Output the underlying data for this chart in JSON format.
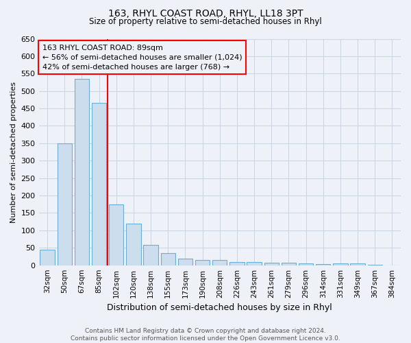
{
  "title1": "163, RHYL COAST ROAD, RHYL, LL18 3PT",
  "title2": "Size of property relative to semi-detached houses in Rhyl",
  "xlabel": "Distribution of semi-detached houses by size in Rhyl",
  "ylabel": "Number of semi-detached properties",
  "footnote": "Contains HM Land Registry data © Crown copyright and database right 2024.\nContains public sector information licensed under the Open Government Licence v3.0.",
  "bins": [
    "32sqm",
    "50sqm",
    "67sqm",
    "85sqm",
    "102sqm",
    "120sqm",
    "138sqm",
    "155sqm",
    "173sqm",
    "190sqm",
    "208sqm",
    "226sqm",
    "243sqm",
    "261sqm",
    "279sqm",
    "296sqm",
    "314sqm",
    "331sqm",
    "349sqm",
    "367sqm",
    "384sqm"
  ],
  "values": [
    45,
    350,
    535,
    465,
    175,
    120,
    58,
    35,
    20,
    15,
    15,
    10,
    10,
    8,
    7,
    5,
    3,
    5,
    5,
    2,
    0
  ],
  "bar_color": "#ccdded",
  "bar_edge_color": "#6aaed6",
  "red_line_x": 3.5,
  "annotation_line1": "163 RHYL COAST ROAD: 89sqm",
  "annotation_line2": "← 56% of semi-detached houses are smaller (1,024)",
  "annotation_line3": "42% of semi-detached houses are larger (768) →",
  "ylim": [
    0,
    650
  ],
  "yticks": [
    0,
    50,
    100,
    150,
    200,
    250,
    300,
    350,
    400,
    450,
    500,
    550,
    600,
    650
  ],
  "background_color": "#eef2f8",
  "grid_color": "#c0cfe0"
}
